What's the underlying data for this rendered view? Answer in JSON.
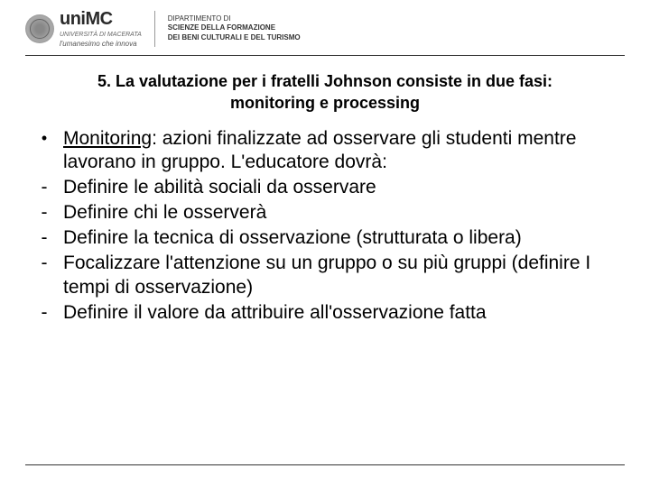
{
  "header": {
    "brand": "uniMC",
    "university": "UNIVERSITÀ DI MACERATA",
    "tagline": "l'umanesimo che innova",
    "department_line1": "DIPARTIMENTO DI",
    "department_line2": "SCIENZE DELLA FORMAZIONE",
    "department_line3": "DEI BENI CULTURALI E DEL TURISMO"
  },
  "title": "5. La valutazione per i fratelli Johnson consiste in due fasi: monitoring e processing",
  "items": [
    {
      "marker": "•",
      "underlined": "Monitoring",
      "rest": ": azioni finalizzate ad osservare gli studenti mentre lavorano in gruppo. L'educatore dovrà:"
    },
    {
      "marker": "-",
      "text": "Definire le abilità sociali da osservare"
    },
    {
      "marker": "-",
      "text": "Definire chi le osserverà"
    },
    {
      "marker": "-",
      "text": "Definire la tecnica di osservazione (strutturata o libera)"
    },
    {
      "marker": "-",
      "text": "Focalizzare l'attenzione su un gruppo o su più gruppi (definire I tempi di osservazione)"
    },
    {
      "marker": "-",
      "text": "Definire il valore da attribuire all'osservazione fatta"
    }
  ],
  "colors": {
    "text": "#000000",
    "background": "#ffffff",
    "rule": "#333333"
  },
  "typography": {
    "title_fontsize": 18,
    "body_fontsize": 21,
    "font_family": "Arial"
  }
}
